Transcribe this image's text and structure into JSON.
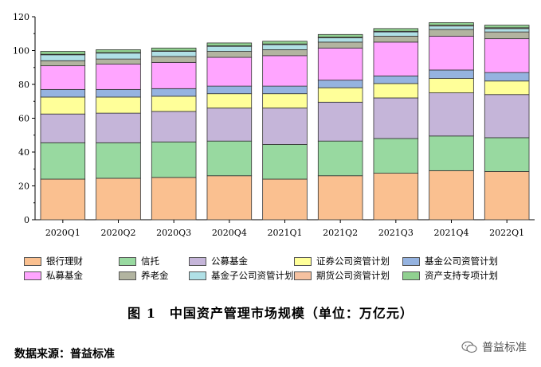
{
  "chart_data": {
    "type": "bar",
    "stacked": true,
    "categories": [
      "2020Q1",
      "2020Q2",
      "2020Q3",
      "2020Q4",
      "2021Q1",
      "2021Q2",
      "2021Q3",
      "2021Q4",
      "2022Q1"
    ],
    "ylim": [
      0,
      120
    ],
    "yticks": [
      0,
      20,
      40,
      60,
      80,
      100,
      120
    ],
    "series": [
      {
        "name": "银行理财",
        "color": "#FAC090",
        "values": [
          24,
          24.5,
          25,
          26,
          24,
          26,
          27.5,
          29,
          28.5
        ]
      },
      {
        "name": "信托",
        "color": "#98D9A0",
        "values": [
          21.5,
          21,
          21,
          20.5,
          20.5,
          20.5,
          20.5,
          20.5,
          20
        ]
      },
      {
        "name": "公募基金",
        "color": "#C5B5D9",
        "values": [
          17,
          17.5,
          18,
          19.5,
          21.5,
          23,
          24,
          25.5,
          25.5
        ]
      },
      {
        "name": "证券公司资管计划",
        "color": "#FFFF99",
        "values": [
          10,
          9.5,
          9,
          8.5,
          8.5,
          8.5,
          8.5,
          8.5,
          8
        ]
      },
      {
        "name": "基金公司资管计划",
        "color": "#95B3E0",
        "values": [
          4.5,
          4.5,
          4.5,
          4.5,
          4.5,
          4.5,
          4.5,
          5,
          5
        ]
      },
      {
        "name": "私募基金",
        "color": "#FFA5FF",
        "values": [
          14,
          15,
          15.5,
          17,
          18,
          19,
          20,
          20,
          20
        ]
      },
      {
        "name": "养老金",
        "color": "#B2B4A0",
        "values": [
          3,
          3,
          3.5,
          3.5,
          3.5,
          3.5,
          3.5,
          4,
          4
        ]
      },
      {
        "name": "基金子公司资管计划",
        "color": "#B0E0E6",
        "values": [
          3.5,
          3.5,
          3,
          3,
          3,
          2.5,
          2.5,
          2,
          2
        ]
      },
      {
        "name": "期货公司资管计划",
        "color": "#F5C1A0",
        "values": [
          0.3,
          0.3,
          0.3,
          0.3,
          0.4,
          0.4,
          0.4,
          0.5,
          0.5
        ]
      },
      {
        "name": "资产支持专项计划",
        "color": "#90D090",
        "values": [
          1.7,
          1.7,
          1.7,
          1.7,
          1.6,
          1.6,
          1.6,
          1.5,
          1.5
        ]
      }
    ]
  },
  "caption": "图 1　中国资产管理市场规模（单位：万亿元）",
  "source": "数据来源：普益标准",
  "watermark": "普益标准"
}
